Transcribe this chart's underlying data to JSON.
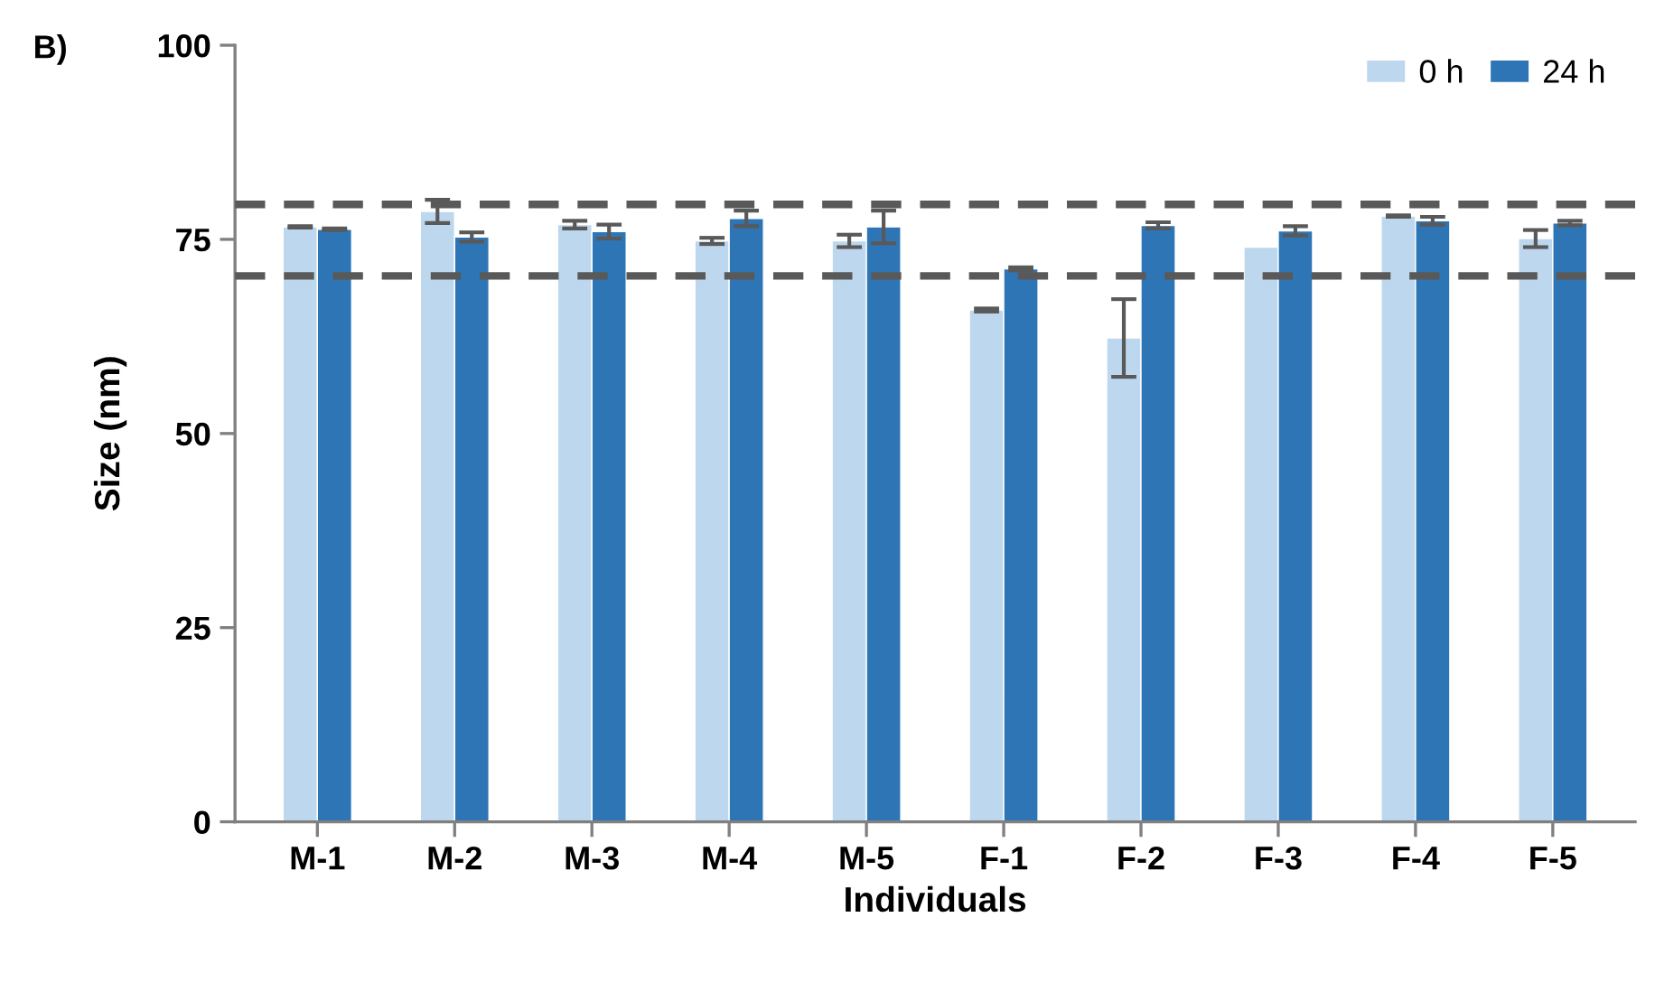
{
  "chart_data": {
    "type": "bar",
    "xlabel": "Individuals",
    "ylabel": "Size (nm)",
    "annotations": [
      "B)"
    ],
    "categories": [
      "M-1",
      "M-2",
      "M-3",
      "M-4",
      "M-5",
      "F-1",
      "F-2",
      "F-3",
      "F-4",
      "F-5"
    ],
    "series": [
      {
        "name": "0 h",
        "color": "#bdd7ee",
        "values": [
          76.6,
          78.6,
          76.9,
          74.8,
          74.8,
          65.9,
          62.3,
          74.0,
          78.0,
          75.1
        ],
        "errors": [
          0.1,
          1.5,
          0.5,
          0.4,
          0.8,
          0.2,
          5.0,
          null,
          0.1,
          1.1
        ]
      },
      {
        "name": "24 h",
        "color": "#2e75b6",
        "values": [
          76.3,
          75.3,
          76.0,
          77.7,
          76.6,
          71.2,
          76.8,
          76.1,
          77.4,
          77.1
        ],
        "errors": [
          0.1,
          0.6,
          0.9,
          1.0,
          2.1,
          0.2,
          0.4,
          0.6,
          0.5,
          0.3
        ]
      }
    ],
    "ylim": [
      0,
      100
    ],
    "yticks": [
      0,
      25,
      50,
      75,
      100
    ],
    "ref_lines": [
      {
        "axis": "y",
        "value": 79.5,
        "color": "#595959",
        "line_style": "dashed"
      },
      {
        "axis": "y",
        "value": 70.3,
        "color": "#595959",
        "line_style": "dashed"
      }
    ],
    "grid": false,
    "legend": "top right"
  }
}
